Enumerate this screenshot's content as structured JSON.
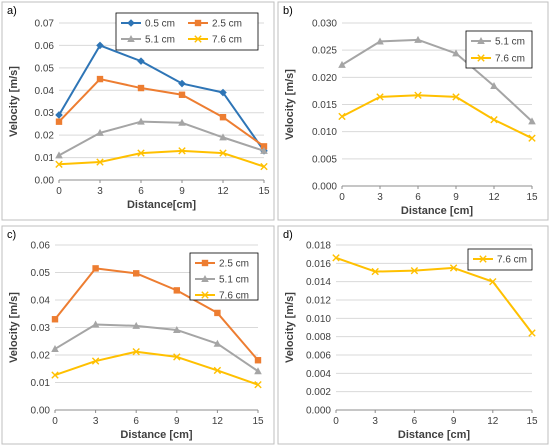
{
  "chart_data": [
    {
      "panel_label": "a)",
      "type": "line",
      "x": [
        0,
        3,
        6,
        9,
        12,
        15
      ],
      "xlabel": "Distance[cm]",
      "ylabel": "Velocity [m/s]",
      "ylim": [
        0,
        0.07
      ],
      "yticks": [
        "0.00",
        "0.01",
        "0.02",
        "0.03",
        "0.04",
        "0.05",
        "0.06",
        "0.07"
      ],
      "xticks": [
        "0",
        "3",
        "6",
        "9",
        "12",
        "15"
      ],
      "legend_position": "top-right",
      "legend_columns": 2,
      "grid": "horizontal",
      "series": [
        {
          "name": "0.5 cm",
          "color": "#2e75b6",
          "marker": "diamond",
          "values": [
            0.029,
            0.06,
            0.053,
            0.043,
            0.039,
            0.013
          ]
        },
        {
          "name": "2.5 cm",
          "color": "#ed7d31",
          "marker": "square",
          "values": [
            0.026,
            0.045,
            0.041,
            0.038,
            0.028,
            0.015
          ]
        },
        {
          "name": "5.1 cm",
          "color": "#a5a5a5",
          "marker": "triangle",
          "values": [
            0.011,
            0.021,
            0.026,
            0.0255,
            0.019,
            0.013
          ]
        },
        {
          "name": "7.6 cm",
          "color": "#ffc000",
          "marker": "x",
          "values": [
            0.007,
            0.008,
            0.012,
            0.013,
            0.012,
            0.006
          ]
        }
      ]
    },
    {
      "panel_label": "b)",
      "type": "line",
      "x": [
        0,
        3,
        6,
        9,
        12,
        15
      ],
      "xlabel": "Distance [cm]",
      "ylabel": "Velocity [m/s]",
      "ylim": [
        0,
        0.03
      ],
      "yticks": [
        "0.000",
        "0.005",
        "0.010",
        "0.015",
        "0.020",
        "0.025",
        "0.030"
      ],
      "xticks": [
        "0",
        "3",
        "6",
        "9",
        "12",
        "15"
      ],
      "legend_position": "top-right",
      "legend_columns": 1,
      "grid": "horizontal",
      "series": [
        {
          "name": "5.1 cm",
          "color": "#a5a5a5",
          "marker": "triangle",
          "values": [
            0.0223,
            0.0266,
            0.0269,
            0.0244,
            0.0184,
            0.0119
          ]
        },
        {
          "name": "7.6 cm",
          "color": "#ffc000",
          "marker": "x",
          "values": [
            0.0128,
            0.0164,
            0.0167,
            0.0164,
            0.0122,
            0.0088
          ]
        }
      ]
    },
    {
      "panel_label": "c)",
      "type": "line",
      "x": [
        0,
        3,
        6,
        9,
        12,
        15
      ],
      "xlabel": "Distance [cm]",
      "ylabel": "Velocity [m/s]",
      "ylim": [
        0,
        0.06
      ],
      "yticks": [
        "0.00",
        "0.01",
        "0.02",
        "0.03",
        "0.04",
        "0.05",
        "0.06"
      ],
      "xticks": [
        "0",
        "3",
        "6",
        "9",
        "12",
        "15"
      ],
      "legend_position": "top-right",
      "legend_columns": 1,
      "grid": "horizontal",
      "series": [
        {
          "name": "2.5 cm",
          "color": "#ed7d31",
          "marker": "square",
          "values": [
            0.033,
            0.0515,
            0.0497,
            0.0435,
            0.0353,
            0.0181
          ]
        },
        {
          "name": "5.1 cm",
          "color": "#a5a5a5",
          "marker": "triangle",
          "values": [
            0.0222,
            0.0311,
            0.0306,
            0.0291,
            0.0241,
            0.0141
          ]
        },
        {
          "name": "7.6 cm",
          "color": "#ffc000",
          "marker": "x",
          "values": [
            0.0127,
            0.0178,
            0.0212,
            0.0193,
            0.0144,
            0.0092
          ]
        }
      ]
    },
    {
      "panel_label": "d)",
      "type": "line",
      "x": [
        0,
        3,
        6,
        9,
        12,
        15
      ],
      "xlabel": "Distance [cm]",
      "ylabel": "Velocity [m/s]",
      "ylim": [
        0,
        0.018
      ],
      "yticks": [
        "0.000",
        "0.002",
        "0.004",
        "0.006",
        "0.008",
        "0.010",
        "0.012",
        "0.014",
        "0.016",
        "0.018"
      ],
      "xticks": [
        "0",
        "3",
        "6",
        "9",
        "12",
        "15"
      ],
      "legend_position": "top-right",
      "legend_columns": 1,
      "grid": "horizontal",
      "series": [
        {
          "name": "7.6 cm",
          "color": "#ffc000",
          "marker": "x",
          "values": [
            0.0166,
            0.0151,
            0.0152,
            0.0155,
            0.014,
            0.0084
          ]
        }
      ]
    }
  ]
}
